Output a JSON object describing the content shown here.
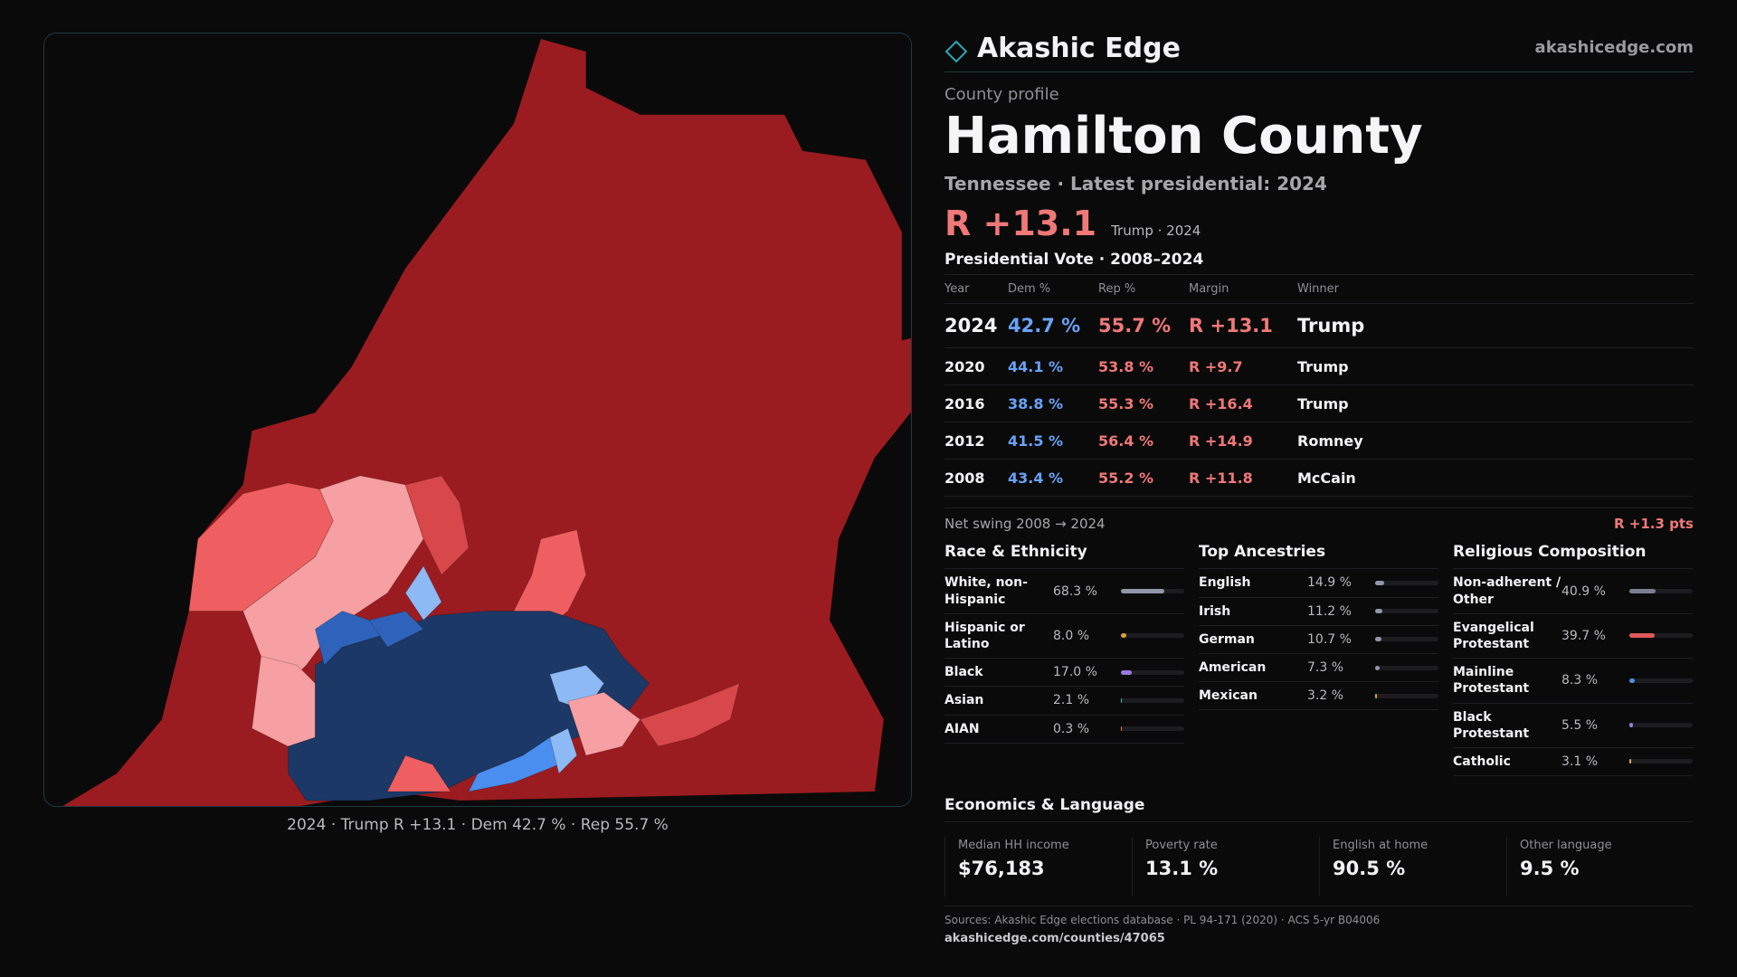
{
  "brand": {
    "name": "Akashic Edge",
    "url": "akashicedge.com"
  },
  "profile": {
    "kicker": "County profile",
    "title": "Hamilton County",
    "subtitle": "Tennessee · Latest presidential: 2024",
    "headline_margin": "R +13.1",
    "headline_note": "Trump · 2024"
  },
  "votes": {
    "title": "Presidential Vote · 2008–2024",
    "headers": [
      "Year",
      "Dem %",
      "Rep %",
      "Margin",
      "Winner"
    ],
    "rows": [
      {
        "year": "2024",
        "dem": "42.7 %",
        "rep": "55.7 %",
        "margin": "R +13.1",
        "winner": "Trump"
      },
      {
        "year": "2020",
        "dem": "44.1 %",
        "rep": "53.8 %",
        "margin": "R +9.7",
        "winner": "Trump"
      },
      {
        "year": "2016",
        "dem": "38.8 %",
        "rep": "55.3 %",
        "margin": "R +16.4",
        "winner": "Trump"
      },
      {
        "year": "2012",
        "dem": "41.5 %",
        "rep": "56.4 %",
        "margin": "R +14.9",
        "winner": "Romney"
      },
      {
        "year": "2008",
        "dem": "43.4 %",
        "rep": "55.2 %",
        "margin": "R +11.8",
        "winner": "McCain"
      }
    ],
    "swing_label": "Net swing 2008 → 2024",
    "swing_value": "R +1.3 pts"
  },
  "race": {
    "title": "Race & Ethnicity",
    "items": [
      {
        "label": "White, non-Hispanic",
        "value": "68.3 %",
        "pct": 68.3,
        "color": "#8f97a8"
      },
      {
        "label": "Hispanic or Latino",
        "value": "8.0 %",
        "pct": 8.0,
        "color": "#e0a030"
      },
      {
        "label": "Black",
        "value": "17.0 %",
        "pct": 17.0,
        "color": "#9a7ae0"
      },
      {
        "label": "Asian",
        "value": "2.1 %",
        "pct": 2.1,
        "color": "#3fc0a0"
      },
      {
        "label": "AIAN",
        "value": "0.3 %",
        "pct": 0.3,
        "color": "#e07a40"
      }
    ]
  },
  "ancestry": {
    "title": "Top Ancestries",
    "items": [
      {
        "label": "English",
        "value": "14.9 %",
        "pct": 14.9,
        "color": "#8f97a8"
      },
      {
        "label": "Irish",
        "value": "11.2 %",
        "pct": 11.2,
        "color": "#8f97a8"
      },
      {
        "label": "German",
        "value": "10.7 %",
        "pct": 10.7,
        "color": "#8f97a8"
      },
      {
        "label": "American",
        "value": "7.3 %",
        "pct": 7.3,
        "color": "#8f97a8"
      },
      {
        "label": "Mexican",
        "value": "3.2 %",
        "pct": 3.2,
        "color": "#e0a030"
      }
    ]
  },
  "religion": {
    "title": "Religious Composition",
    "items": [
      {
        "label": "Non-adherent / Other",
        "value": "40.9 %",
        "pct": 40.9,
        "color": "#7a8090"
      },
      {
        "label": "Evangelical Protestant",
        "value": "39.7 %",
        "pct": 39.7,
        "color": "#e05a5a"
      },
      {
        "label": "Mainline Protestant",
        "value": "8.3 %",
        "pct": 8.3,
        "color": "#4a90e0"
      },
      {
        "label": "Black Protestant",
        "value": "5.5 %",
        "pct": 5.5,
        "color": "#9a7ae0"
      },
      {
        "label": "Catholic",
        "value": "3.1 %",
        "pct": 3.1,
        "color": "#e0b030"
      }
    ]
  },
  "economics": {
    "title": "Economics & Language",
    "cards": [
      {
        "key": "Median HH income",
        "value": "$76,183"
      },
      {
        "key": "Poverty rate",
        "value": "13.1 %"
      },
      {
        "key": "English at home",
        "value": "90.5 %"
      },
      {
        "key": "Other language",
        "value": "9.5 %"
      }
    ]
  },
  "footer": {
    "sources": "Sources: Akashic Edge elections database · PL 94-171 (2020) · ACS 5-yr B04006",
    "link": "akashicedge.com/counties/47065"
  },
  "map": {
    "caption": "2024 · Trump R +13.1 · Dem 42.7 % · Rep 55.7 %",
    "colors": {
      "safe_r": "#9b1c20",
      "lean_r": "#d8474a",
      "likely_r": "#ef5f61",
      "tilt_r": "#f6a0a3",
      "safe_d": "#1b3866",
      "likely_d": "#2f63bb",
      "lean_d": "#4a8ef0",
      "tilt_d": "#8db9f5"
    }
  },
  "colors": {
    "rep": "#f07878",
    "dem": "#6aa2f7",
    "accent": "#1d3a40"
  }
}
